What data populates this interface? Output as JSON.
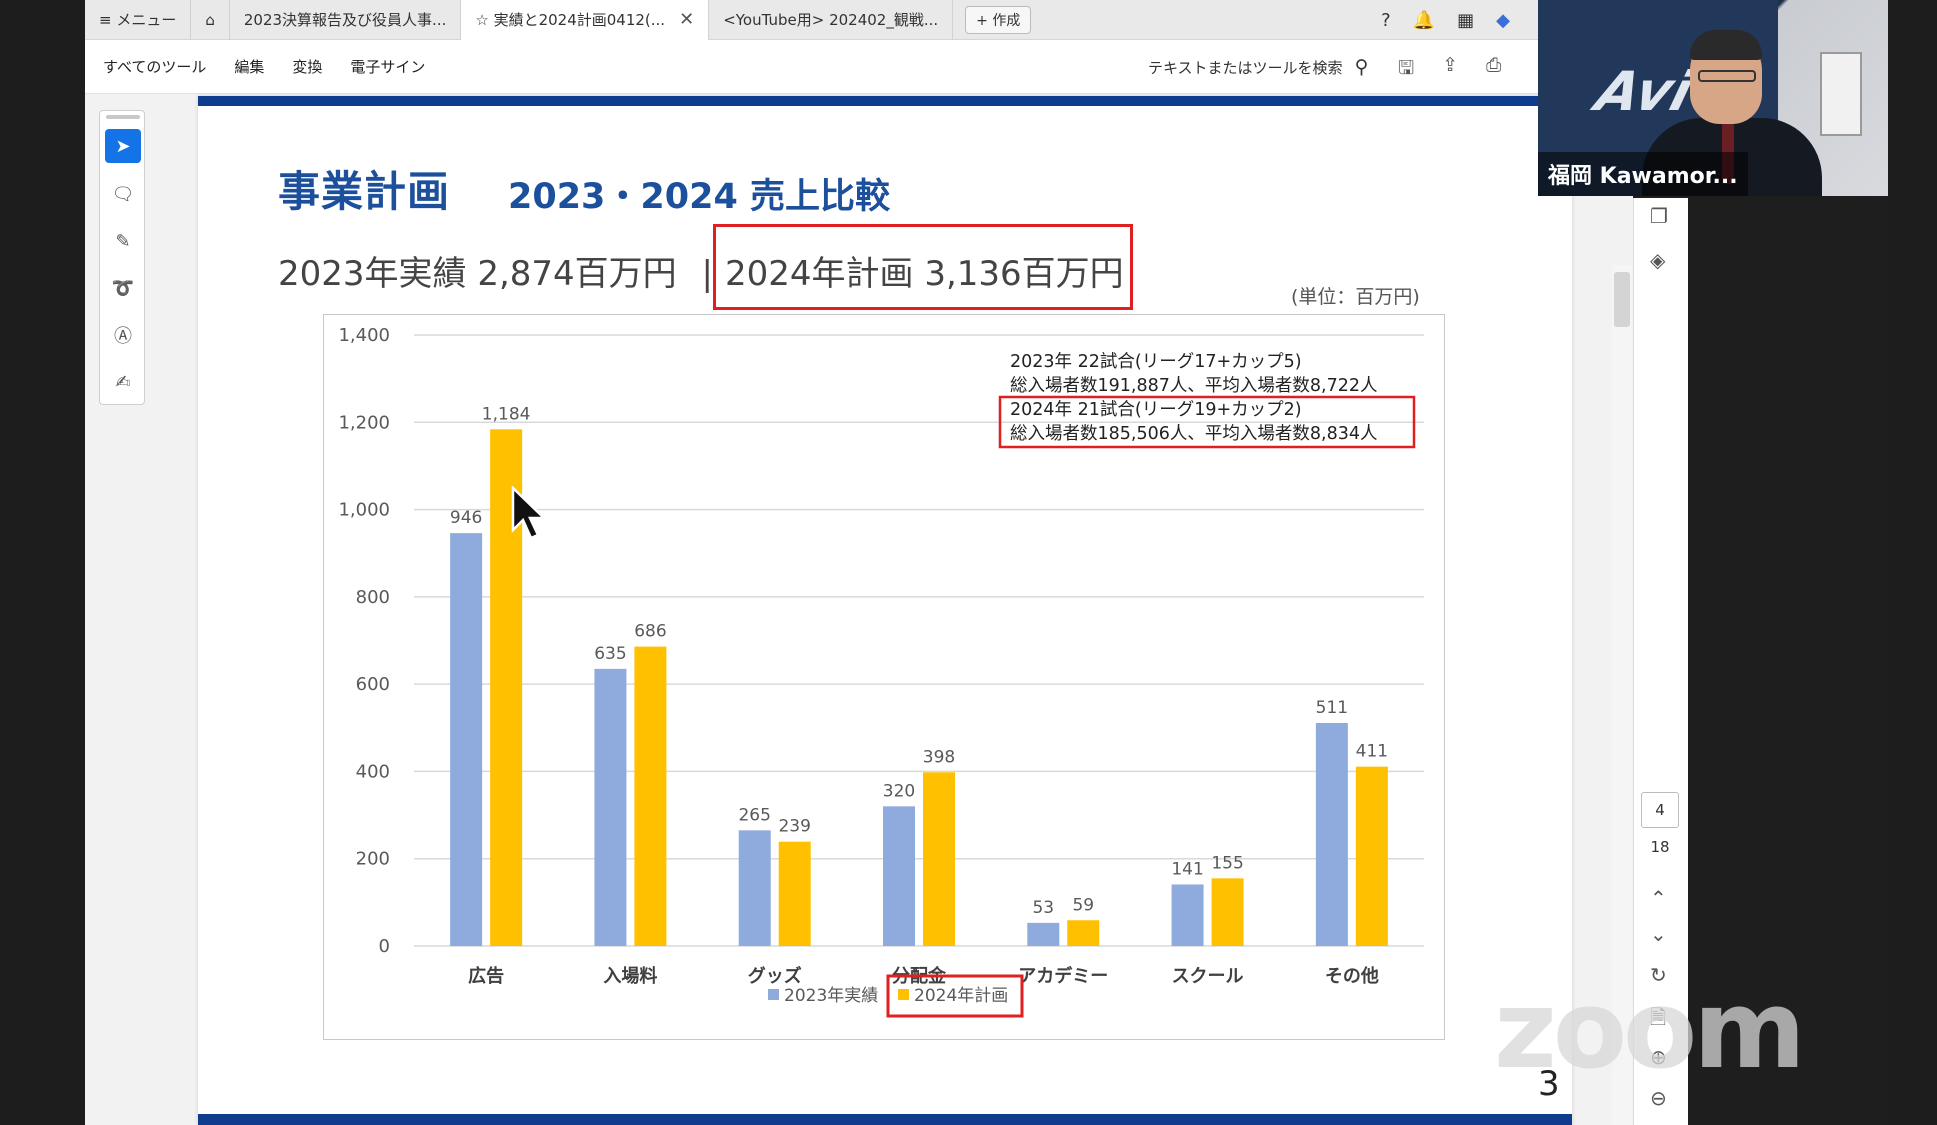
{
  "tabs": [
    {
      "label": "≡ メニュー"
    },
    {
      "label": "⌂"
    },
    {
      "label": "2023決算報告及び役員人事..."
    },
    {
      "label": "☆ 実績と2024計画0412(..."
    },
    {
      "label": "<YouTube用> 202402_観戦..."
    }
  ],
  "new_tab": "+ 作成",
  "menu": {
    "items": [
      "すべてのツール",
      "編集",
      "変換",
      "電子サイン"
    ],
    "search_placeholder": "テキストまたはツールを検索"
  },
  "page": {
    "title_main": "事業計画",
    "title_sub": "2023・2024 売上比較",
    "summary_actual": "2023年実績 2,874百万円",
    "summary_sep": "|",
    "summary_plan": "2024年計画 3,136百万円",
    "unit": "(単位：百万円)",
    "page_number": "3"
  },
  "chart_data": {
    "type": "bar",
    "categories": [
      "広告",
      "入場料",
      "グッズ",
      "分配金",
      "アカデミー",
      "スクール",
      "その他"
    ],
    "series": [
      {
        "name": "2023年実績",
        "values": [
          946,
          635,
          265,
          320,
          53,
          141,
          511
        ],
        "color": "#8faadc"
      },
      {
        "name": "2024年計画",
        "values": [
          1184,
          686,
          239,
          398,
          59,
          155,
          411
        ],
        "color": "#ffc000"
      }
    ],
    "ylim": [
      0,
      1400
    ],
    "yticks": [
      "0",
      "200",
      "400",
      "600",
      "800",
      "1,000",
      "1,200",
      "1,400"
    ],
    "data_labels": [
      [
        "946",
        "635",
        "265",
        "320",
        "53",
        "141",
        "511"
      ],
      [
        "1,184",
        "686",
        "239",
        "398",
        "59",
        "155",
        "411"
      ]
    ],
    "annotations": [
      "2023年 22試合(リーグ17+カップ5)",
      "総入場者数191,887人、平均入場者数8,722人",
      "2024年 21試合(リーグ19+カップ2)",
      "総入場者数185,506人、平均入場者数8,834人"
    ],
    "grid": true,
    "legend_position": "bottom-center"
  },
  "pager": {
    "current": "4",
    "total": "18"
  },
  "video": {
    "participant_name": "福岡 Kawamor..."
  },
  "watermark": "zoom"
}
